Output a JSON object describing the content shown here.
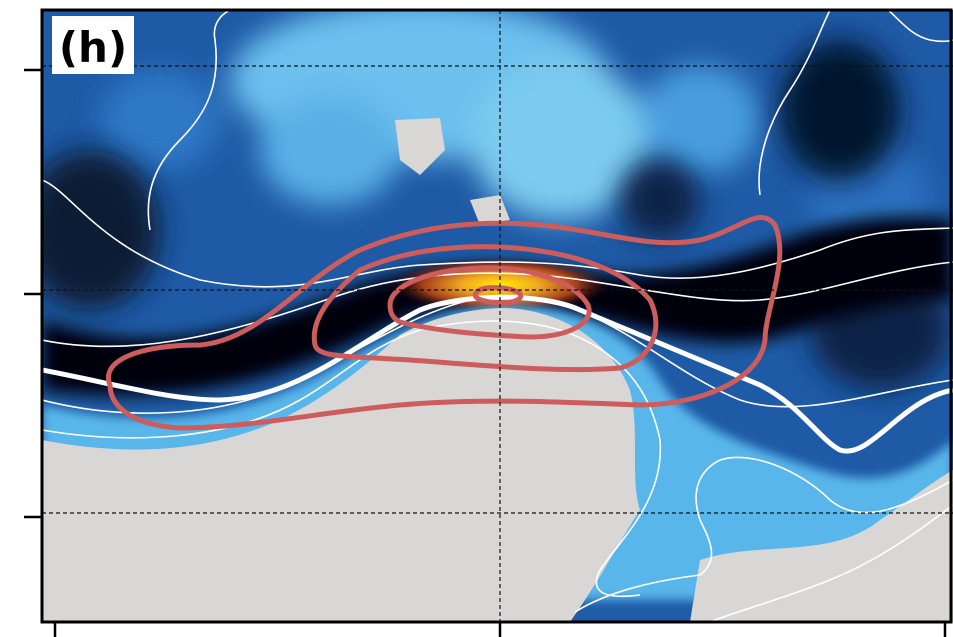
{
  "chart_data": {
    "type": "heatmap",
    "panel_label": "(h)",
    "title": "",
    "xlabel": "",
    "ylabel": "",
    "x_tick_count": 3,
    "y_tick_count": 3,
    "grid": true,
    "grid_style": "dashed black",
    "colormap": [
      "#000000",
      "#0b2a55",
      "#1f5ba8",
      "#3d8ed8",
      "#6cc0ee",
      "#a8dcf0",
      "#d9d7d5",
      "#8a2a1c",
      "#d8681c",
      "#ffe600"
    ],
    "masked_color": "#d9d7d5",
    "contour_colors": {
      "white_lines": "#ffffff",
      "red_lines": "#cd5c5c"
    },
    "red_contour_levels": 4,
    "white_contour_levels": 6
  }
}
